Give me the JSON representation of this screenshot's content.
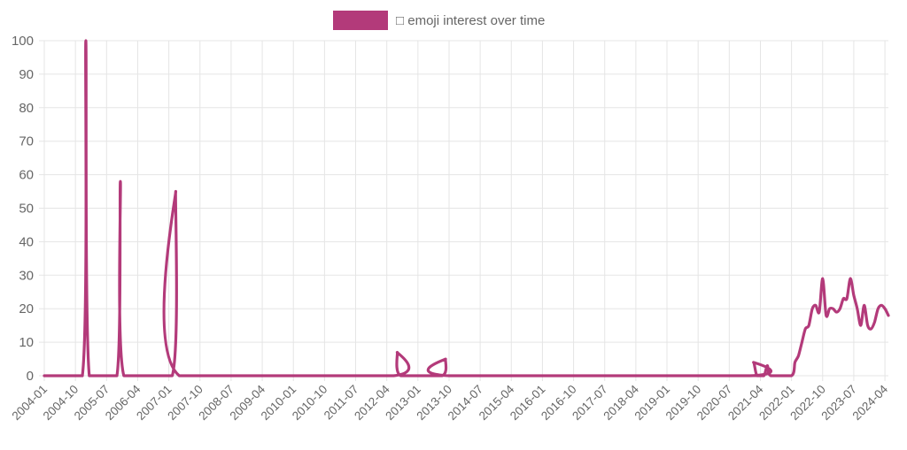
{
  "colors": {
    "series": "#b33a7a",
    "grid": "#e5e5e5",
    "tick_text": "#666666"
  },
  "chart_data": {
    "type": "line",
    "title": "",
    "xlabel": "",
    "ylabel": "",
    "ylim": [
      0,
      100
    ],
    "y_ticks": [
      0,
      10,
      20,
      30,
      40,
      50,
      60,
      70,
      80,
      90,
      100
    ],
    "grid": true,
    "legend_position": "top-center",
    "x_tick_labels": [
      "2004-01",
      "2004-10",
      "2005-07",
      "2006-04",
      "2007-01",
      "2007-10",
      "2008-07",
      "2009-04",
      "2010-01",
      "2010-10",
      "2011-07",
      "2012-04",
      "2013-01",
      "2013-10",
      "2014-07",
      "2015-04",
      "2016-01",
      "2016-10",
      "2017-07",
      "2018-04",
      "2019-01",
      "2019-10",
      "2020-07",
      "2021-04",
      "2022-01",
      "2022-10",
      "2023-07",
      "2024-04"
    ],
    "series": [
      {
        "name": "□ emoji interest over time",
        "color": "#b33a7a",
        "points": [
          [
            "2004-01",
            0
          ],
          [
            "2004-12",
            0
          ],
          [
            "2005-01",
            100
          ],
          [
            "2005-02",
            0
          ],
          [
            "2005-10",
            0
          ],
          [
            "2005-11",
            58
          ],
          [
            "2005-12",
            0
          ],
          [
            "2007-02",
            0
          ],
          [
            "2007-03",
            55
          ],
          [
            "2007-04",
            0
          ],
          [
            "2012-06",
            0
          ],
          [
            "2012-07",
            7
          ],
          [
            "2012-08",
            0
          ],
          [
            "2013-08",
            0
          ],
          [
            "2013-09",
            5
          ],
          [
            "2013-10",
            0
          ],
          [
            "2021-01",
            0
          ],
          [
            "2021-02",
            4
          ],
          [
            "2021-03",
            0
          ],
          [
            "2021-05",
            0
          ],
          [
            "2021-06",
            3
          ],
          [
            "2021-07",
            0
          ],
          [
            "2022-01",
            0
          ],
          [
            "2022-02",
            4
          ],
          [
            "2022-03",
            6
          ],
          [
            "2022-04",
            10
          ],
          [
            "2022-05",
            14
          ],
          [
            "2022-06",
            15
          ],
          [
            "2022-07",
            20
          ],
          [
            "2022-08",
            21
          ],
          [
            "2022-09",
            19
          ],
          [
            "2022-10",
            29
          ],
          [
            "2022-11",
            18
          ],
          [
            "2022-12",
            20
          ],
          [
            "2023-01",
            20
          ],
          [
            "2023-02",
            19
          ],
          [
            "2023-03",
            20
          ],
          [
            "2023-04",
            23
          ],
          [
            "2023-05",
            23
          ],
          [
            "2023-06",
            29
          ],
          [
            "2023-07",
            24
          ],
          [
            "2023-08",
            20
          ],
          [
            "2023-09",
            15
          ],
          [
            "2023-10",
            21
          ],
          [
            "2023-11",
            15
          ],
          [
            "2023-12",
            14
          ],
          [
            "2024-01",
            16
          ],
          [
            "2024-02",
            20
          ],
          [
            "2024-03",
            21
          ],
          [
            "2024-04",
            20
          ],
          [
            "2024-05",
            18
          ]
        ]
      }
    ]
  }
}
